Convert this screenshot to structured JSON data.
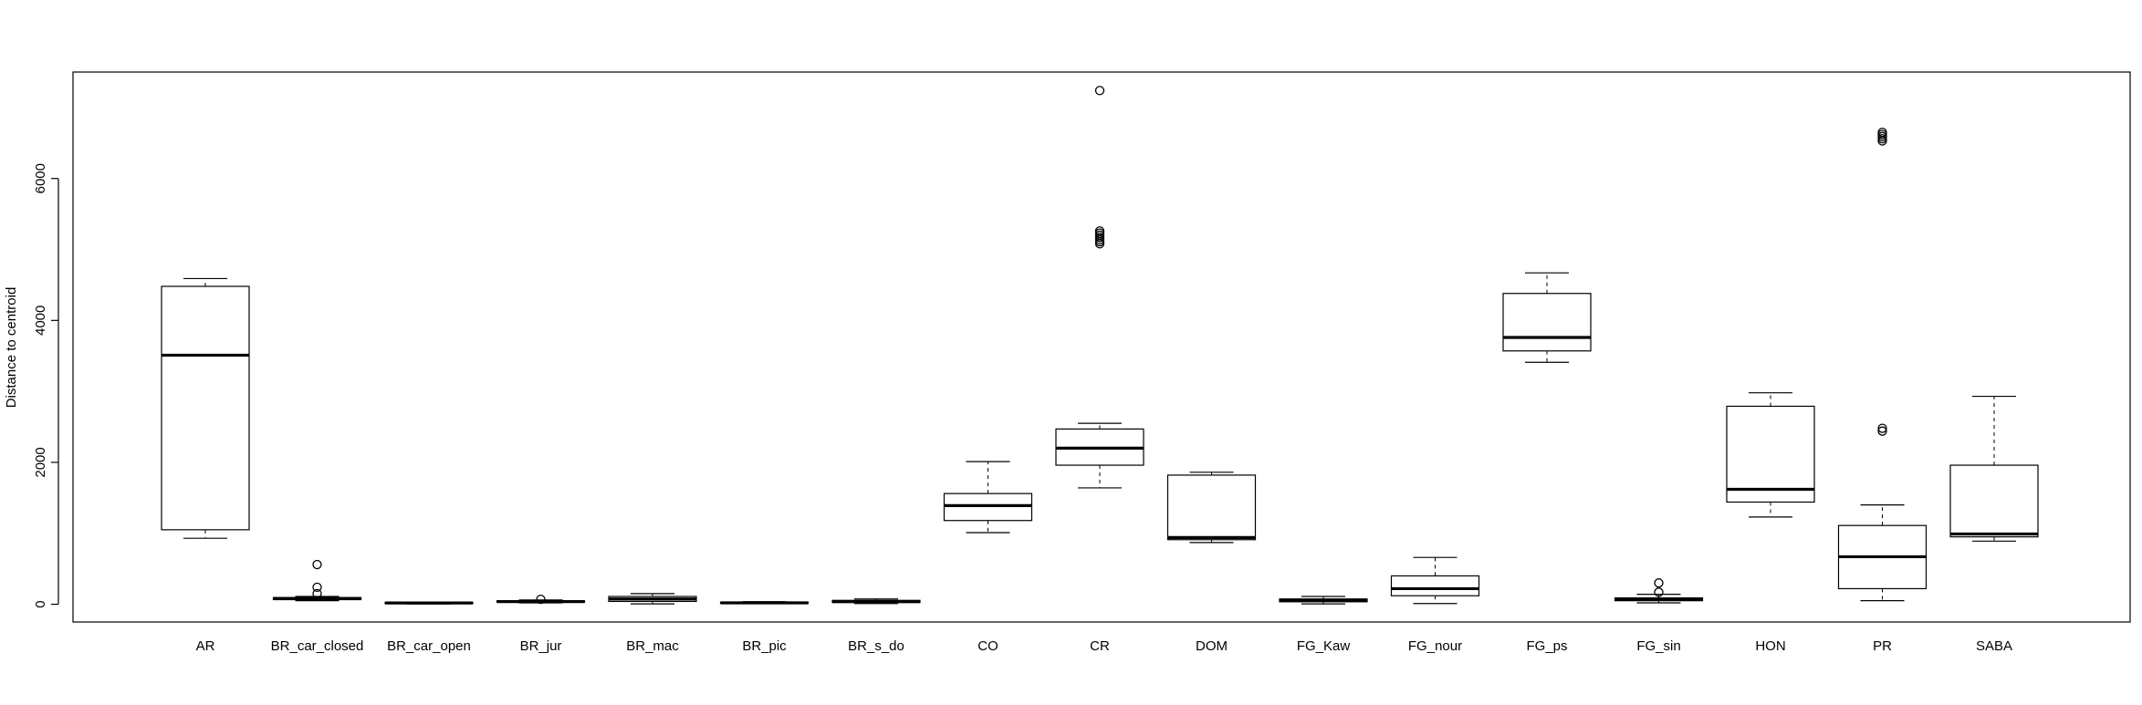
{
  "chart_data": {
    "type": "boxplot",
    "title": "",
    "xlabel": "",
    "ylabel": "Distance to centroid",
    "ylim": [
      -250,
      7500
    ],
    "yticks": [
      0,
      2000,
      4000,
      6000
    ],
    "ytick_labels": [
      "0",
      "2000",
      "4000",
      "6000"
    ],
    "grid": false,
    "categories": [
      "AR",
      "BR_car_closed",
      "BR_car_open",
      "BR_jur",
      "BR_mac",
      "BR_pic",
      "BR_s_do",
      "CO",
      "CR",
      "DOM",
      "FG_Kaw",
      "FG_nour",
      "FG_ps",
      "FG_sin",
      "HON",
      "PR",
      "SABA"
    ],
    "boxes": [
      {
        "label": "AR",
        "whisker_low": 930,
        "q1": 1050,
        "median": 3510,
        "q3": 4480,
        "whisker_high": 4590,
        "outliers": []
      },
      {
        "label": "BR_car_closed",
        "whisker_low": 50,
        "q1": 65,
        "median": 80,
        "q3": 95,
        "whisker_high": 110,
        "outliers": [
          150,
          240,
          560
        ]
      },
      {
        "label": "BR_car_open",
        "whisker_low": 5,
        "q1": 12,
        "median": 18,
        "q3": 25,
        "whisker_high": 32,
        "outliers": []
      },
      {
        "label": "BR_jur",
        "whisker_low": 20,
        "q1": 30,
        "median": 38,
        "q3": 48,
        "whisker_high": 60,
        "outliers": [
          70
        ]
      },
      {
        "label": "BR_mac",
        "whisker_low": 5,
        "q1": 40,
        "median": 75,
        "q3": 110,
        "whisker_high": 150,
        "outliers": []
      },
      {
        "label": "BR_pic",
        "whisker_low": 8,
        "q1": 15,
        "median": 20,
        "q3": 28,
        "whisker_high": 36,
        "outliers": []
      },
      {
        "label": "BR_s_do",
        "whisker_low": 10,
        "q1": 25,
        "median": 38,
        "q3": 55,
        "whisker_high": 75,
        "outliers": []
      },
      {
        "label": "CO",
        "whisker_low": 1010,
        "q1": 1180,
        "median": 1390,
        "q3": 1560,
        "whisker_high": 2010,
        "outliers": []
      },
      {
        "label": "CR",
        "whisker_low": 1640,
        "q1": 1960,
        "median": 2200,
        "q3": 2470,
        "whisker_high": 2550,
        "outliers": [
          5080,
          5110,
          5140,
          5170,
          5200,
          5230,
          5260,
          7240
        ]
      },
      {
        "label": "DOM",
        "whisker_low": 870,
        "q1": 910,
        "median": 940,
        "q3": 1820,
        "whisker_high": 1860,
        "outliers": []
      },
      {
        "label": "FG_Kaw",
        "whisker_low": 5,
        "q1": 35,
        "median": 55,
        "q3": 75,
        "whisker_high": 110,
        "outliers": []
      },
      {
        "label": "FG_nour",
        "whisker_low": 10,
        "q1": 120,
        "median": 220,
        "q3": 400,
        "whisker_high": 660,
        "outliers": []
      },
      {
        "label": "FG_ps",
        "whisker_low": 3410,
        "q1": 3570,
        "median": 3760,
        "q3": 4380,
        "whisker_high": 4670,
        "outliers": []
      },
      {
        "label": "FG_sin",
        "whisker_low": 20,
        "q1": 50,
        "median": 70,
        "q3": 90,
        "whisker_high": 140,
        "outliers": [
          170,
          300
        ]
      },
      {
        "label": "HON",
        "whisker_low": 1230,
        "q1": 1440,
        "median": 1620,
        "q3": 2790,
        "whisker_high": 2980,
        "outliers": []
      },
      {
        "label": "PR",
        "whisker_low": 50,
        "q1": 220,
        "median": 670,
        "q3": 1110,
        "whisker_high": 1400,
        "outliers": [
          2440,
          2480,
          6530,
          6560,
          6590,
          6620,
          6650
        ]
      },
      {
        "label": "SABA",
        "whisker_low": 890,
        "q1": 950,
        "median": 990,
        "q3": 1960,
        "whisker_high": 2930,
        "outliers": []
      }
    ]
  }
}
